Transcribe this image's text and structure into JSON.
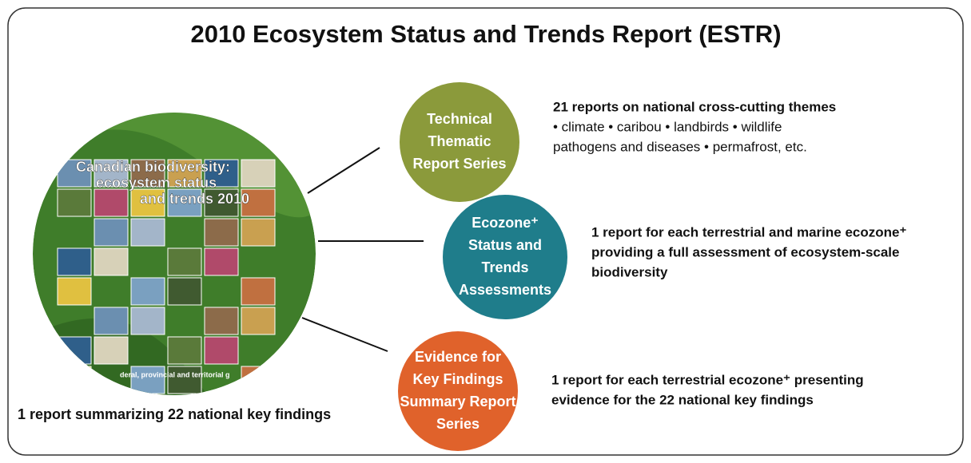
{
  "title": "2010 Ecosystem Status and Trends Report (ESTR)",
  "cover": {
    "lines": [
      "Canadian biodiversity:",
      "ecosystem status",
      "and trends 2010"
    ],
    "footer": "deral, provincial and territorial g",
    "caption": "1 report summarizing 22 national key findings"
  },
  "nodes": [
    {
      "label": [
        "Technical",
        "Thematic",
        "Report Series"
      ],
      "color": "#8b9a3b",
      "description": [
        {
          "text": "21 reports on national cross-cutting themes",
          "bold": true
        },
        {
          "text": "• climate • caribou • landbirds • wildlife",
          "bold": false
        },
        {
          "text": "pathogens and diseases • permafrost, etc.",
          "bold": false
        }
      ]
    },
    {
      "label": [
        "Ecozone⁺",
        "Status and",
        "Trends",
        "Assessments"
      ],
      "color": "#1f7d8b",
      "description": [
        {
          "text": "1 report for each terrestrial and marine ecozone⁺",
          "bold": true
        },
        {
          "text": "providing a full assessment of ecosystem-scale",
          "bold": true
        },
        {
          "text": "biodiversity",
          "bold": true
        }
      ]
    },
    {
      "label": [
        "Evidence for",
        "Key Findings",
        "Summary Report",
        "Series"
      ],
      "color": "#e0622b",
      "description": [
        {
          "text": "1 report for each terrestrial ecozone⁺ presenting",
          "bold": true
        },
        {
          "text": "evidence for the 22 national key findings",
          "bold": true
        }
      ]
    }
  ]
}
